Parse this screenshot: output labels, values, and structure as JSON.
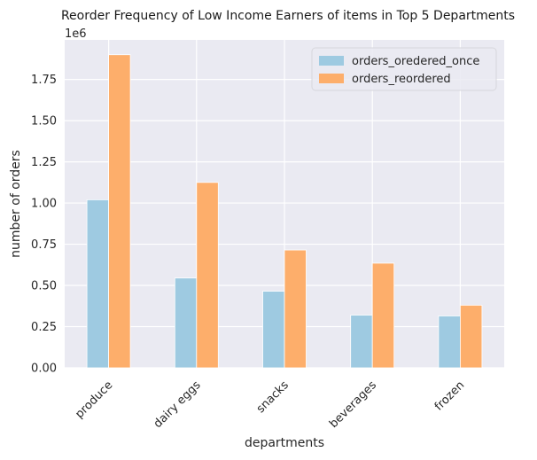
{
  "chart_data": {
    "type": "bar",
    "title": "Reorder Frequency of Low Income Earners of items in Top 5 Departments",
    "xlabel": "departments",
    "ylabel": "number of orders",
    "y_offset_label": "1e6",
    "categories": [
      "produce",
      "dairy eggs",
      "snacks",
      "beverages",
      "frozen"
    ],
    "series": [
      {
        "name": "orders_oredered_once",
        "values": [
          1020000,
          545000,
          465000,
          320000,
          315000
        ],
        "color": "#9ecae1"
      },
      {
        "name": "orders_reordered",
        "values": [
          1900000,
          1125000,
          715000,
          635000,
          380000
        ],
        "color": "#fdae6b"
      }
    ],
    "ylim": [
      0,
      1990000
    ],
    "yticks": [
      0,
      250000,
      500000,
      750000,
      1000000,
      1250000,
      1500000,
      1750000
    ],
    "ytick_labels": [
      "0.00",
      "0.25",
      "0.50",
      "0.75",
      "1.00",
      "1.25",
      "1.50",
      "1.75"
    ],
    "grid": true,
    "legend_position": "top-right",
    "background_color": "#eaeaf2"
  }
}
